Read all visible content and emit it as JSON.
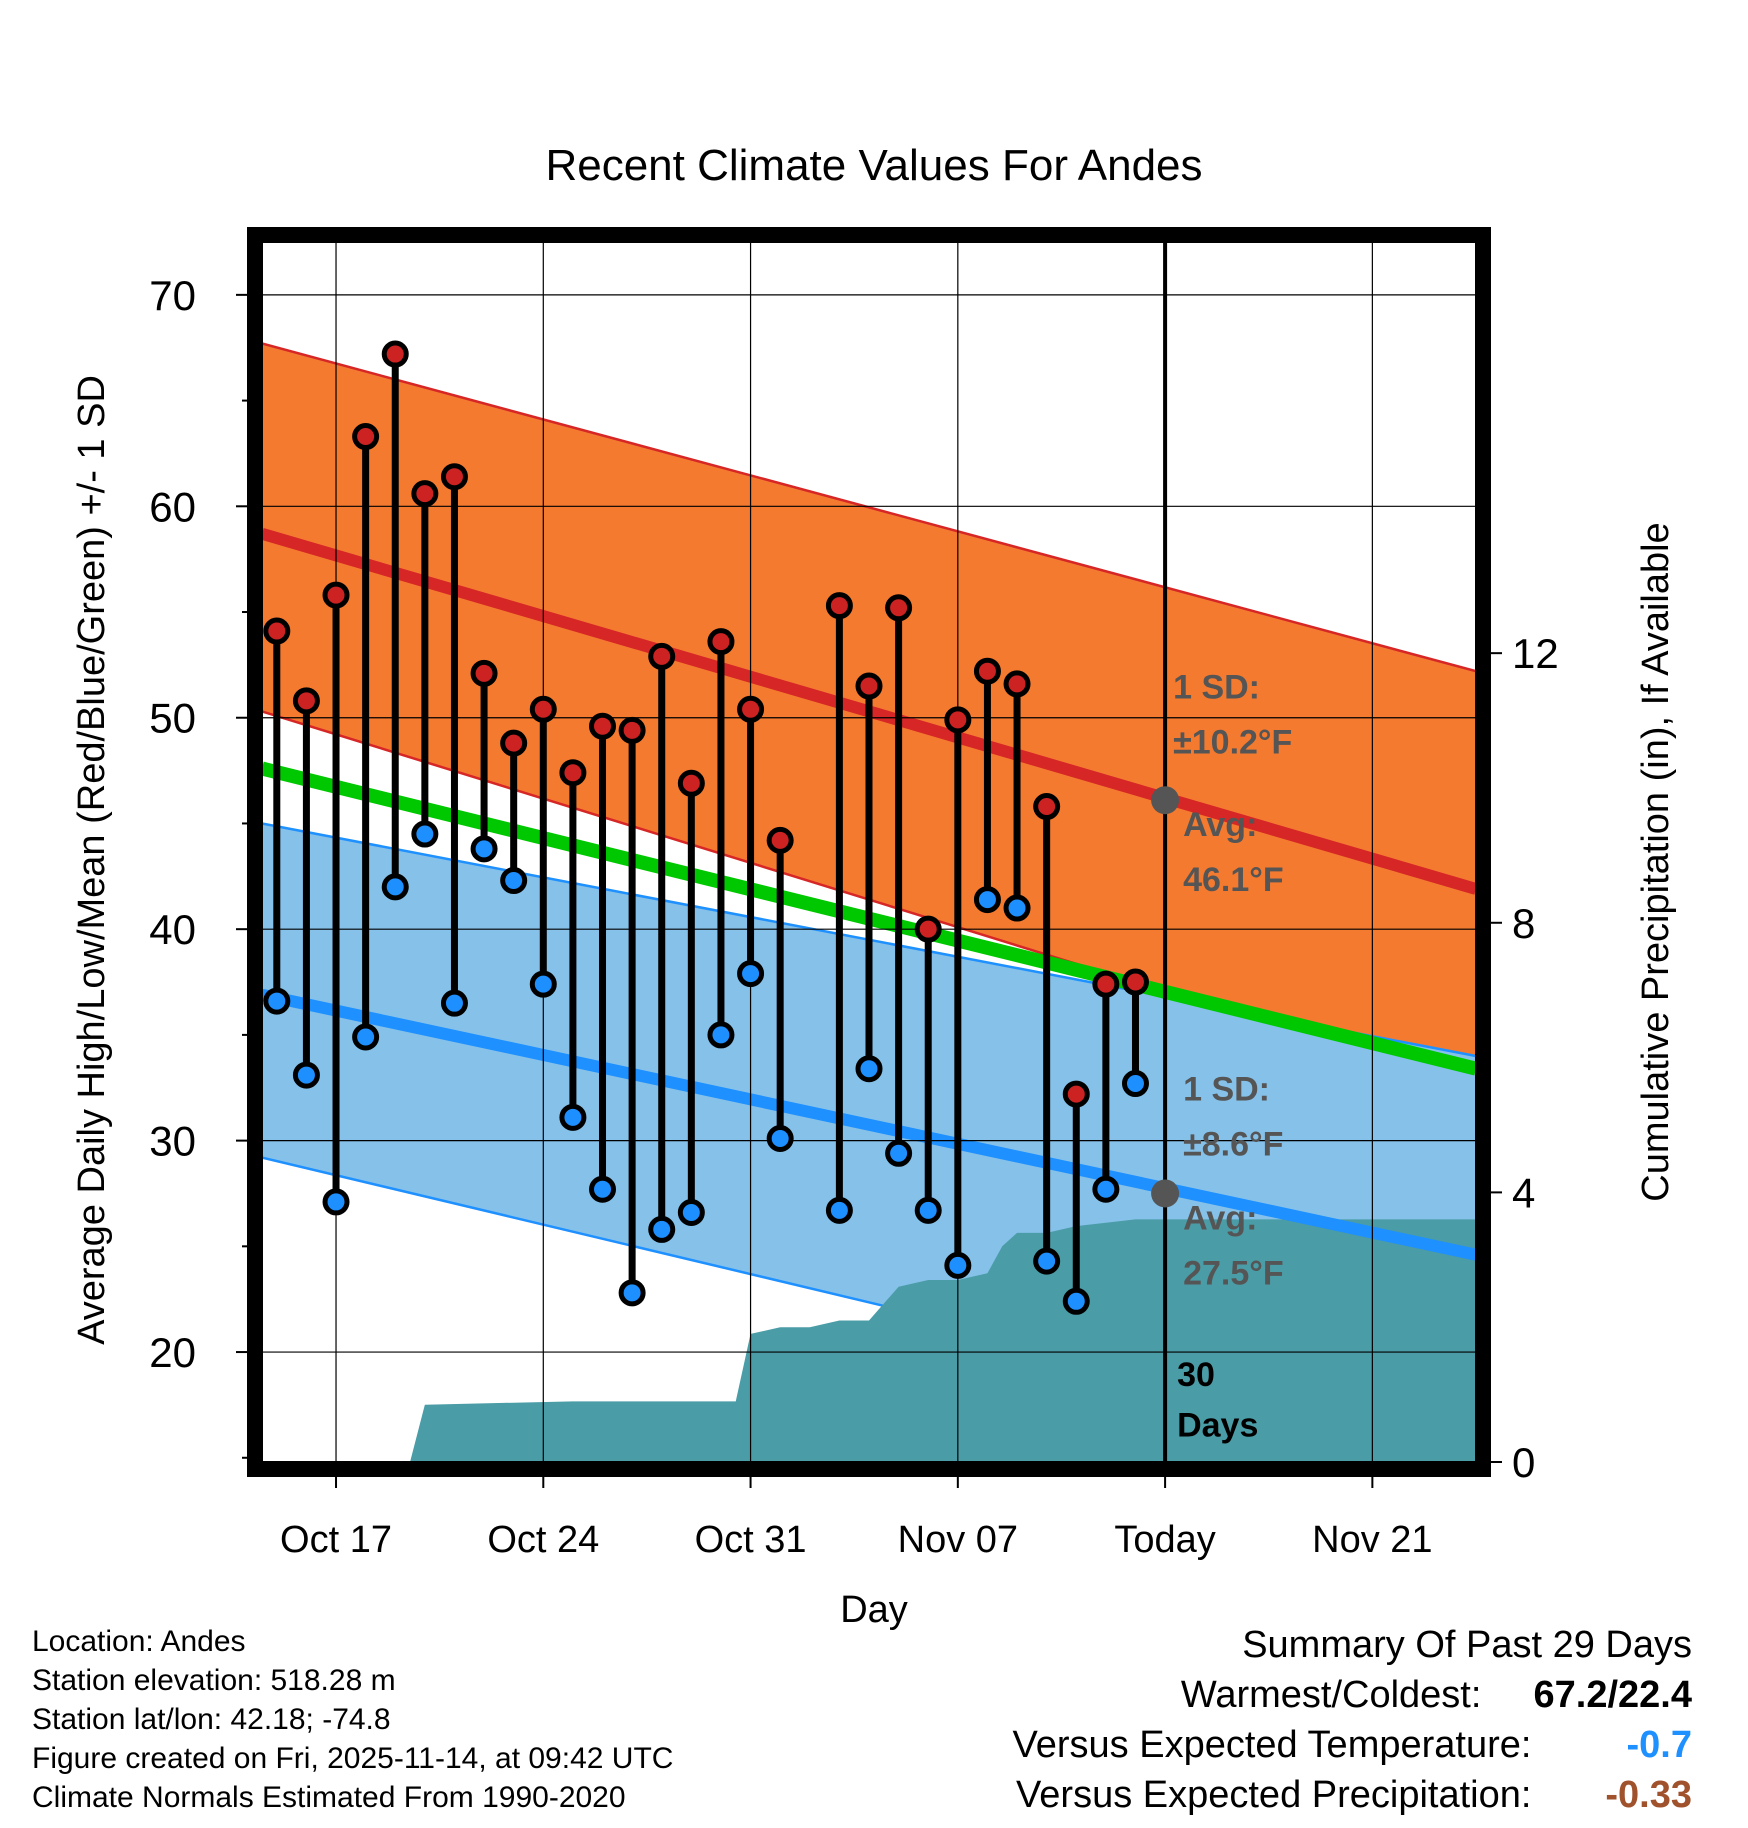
{
  "colors": {
    "high_band": "#f47a30",
    "high_line": "#d62626",
    "low_band": "#85c1e9",
    "low_line": "#1e90ff",
    "mean_line": "#00c800",
    "precip": "#4a9ca6",
    "stem": "#000000",
    "high_dot": "#cc2222",
    "low_dot": "#1e8fff",
    "annotation": "#555555",
    "temp_departure": "#1e90ff",
    "precip_departure": "#a0522d"
  },
  "chart_data": {
    "type": "line",
    "title": "Recent Climate Values For Andes",
    "xlabel": "Day",
    "ylabel": "Average Daily High/Low/Mean (Red/Blue/Green) +/- 1 SD",
    "y2label": "Cumulative Precipitation (in), If Available",
    "xlim": [
      -0.5,
      40.5
    ],
    "ylim": [
      14.8,
      72.5
    ],
    "y2lim": [
      0,
      18.1
    ],
    "x_ticks": [
      {
        "x": 2,
        "label": "Oct 17"
      },
      {
        "x": 9,
        "label": "Oct 24"
      },
      {
        "x": 16,
        "label": "Oct 31"
      },
      {
        "x": 23,
        "label": "Nov 07"
      },
      {
        "x": 30,
        "label": "Today"
      },
      {
        "x": 37,
        "label": "Nov 21"
      }
    ],
    "y_ticks": [
      20,
      30,
      40,
      50,
      60,
      70
    ],
    "y2_ticks": [
      0,
      4,
      8,
      12
    ],
    "grid": true,
    "normal_high": {
      "x": [
        -0.5,
        40.5
      ],
      "mean": [
        58.7,
        41.9
      ],
      "upper": [
        67.7,
        52.2
      ],
      "lower": [
        50.3,
        32.5
      ]
    },
    "normal_low": {
      "x": [
        -0.5,
        40.5
      ],
      "mean": [
        36.9,
        24.6
      ],
      "upper": [
        45.0,
        34.0
      ],
      "lower": [
        29.2,
        15.5
      ]
    },
    "normal_mean": {
      "x": [
        -0.5,
        40.5
      ],
      "values": [
        47.6,
        33.4
      ]
    },
    "daily": {
      "x": [
        0,
        1,
        2,
        3,
        4,
        5,
        6,
        7,
        8,
        9,
        10,
        11,
        12,
        13,
        14,
        15,
        16,
        17,
        19,
        20,
        21,
        22,
        23,
        24,
        25,
        26,
        27,
        28,
        29
      ],
      "high": [
        54.1,
        50.8,
        55.8,
        63.3,
        67.2,
        60.6,
        61.4,
        52.1,
        48.8,
        50.4,
        47.4,
        49.6,
        49.4,
        52.9,
        46.9,
        53.6,
        50.4,
        44.2,
        55.3,
        51.5,
        55.2,
        40.0,
        49.9,
        52.2,
        51.6,
        45.8,
        32.2,
        37.4,
        37.5
      ],
      "low": [
        36.6,
        33.1,
        27.1,
        34.9,
        42.0,
        44.5,
        36.5,
        43.8,
        42.3,
        37.4,
        31.1,
        27.7,
        22.8,
        25.8,
        26.6,
        35.0,
        37.9,
        30.1,
        26.7,
        33.4,
        29.4,
        26.7,
        24.1,
        41.4,
        41.0,
        24.3,
        22.4,
        27.7,
        32.7
      ]
    },
    "precip_cumulative": {
      "x": [
        4.5,
        5,
        10,
        13,
        14,
        15,
        15.5,
        16,
        17,
        18,
        19,
        20,
        21,
        22,
        23,
        24,
        24.5,
        25,
        26,
        27,
        28,
        29,
        30,
        40.5
      ],
      "values": [
        0,
        0.85,
        0.9,
        0.9,
        0.9,
        0.9,
        0.9,
        1.9,
        2.0,
        2.0,
        2.1,
        2.1,
        2.6,
        2.7,
        2.7,
        2.8,
        3.2,
        3.4,
        3.4,
        3.5,
        3.55,
        3.6,
        3.6,
        3.6
      ]
    },
    "today_x": 30,
    "today_markers": {
      "high_avg": 46.1,
      "low_avg": 27.5
    },
    "annotations": {
      "high_sd_label": "1 SD:",
      "high_sd_value": "±10.2°F",
      "high_avg_label": "Avg:",
      "high_avg_value": "46.1°F",
      "low_sd_label": "1 SD:",
      "low_sd_value": "±8.6°F",
      "low_avg_label": "Avg:",
      "low_avg_value": "27.5°F",
      "window_days": "30",
      "window_label": "Days"
    }
  },
  "footer": {
    "location": "Location: Andes",
    "elevation": "Station elevation: 518.28 m",
    "latlon": "Station lat/lon: 42.18; -74.8",
    "created": "Figure created on Fri, 2025-11-14, at 09:42 UTC",
    "normals": "Climate Normals Estimated From 1990-2020"
  },
  "summary": {
    "title": "Summary Of Past 29 Days",
    "warm_cold_label": "Warmest/Coldest:",
    "warm_cold_value": "67.2/22.4",
    "temp_label": "Versus Expected Temperature:",
    "temp_value": "-0.7",
    "precip_label": "Versus Expected Precipitation:",
    "precip_value": "-0.33"
  }
}
